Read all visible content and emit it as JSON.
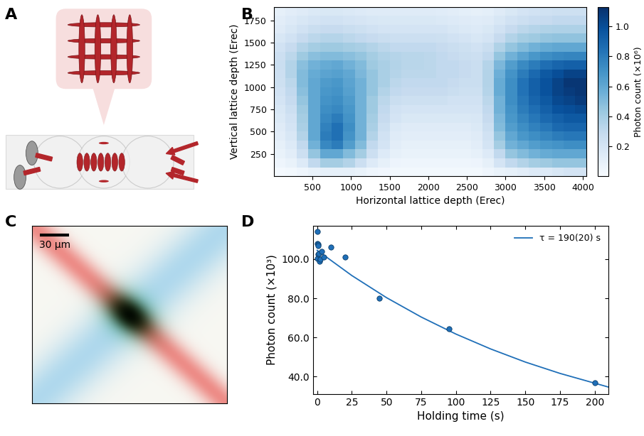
{
  "panel_labels": [
    "A",
    "B",
    "C",
    "D"
  ],
  "image": {
    "scale_bar": "30 µm"
  },
  "chart_data": [
    {
      "type": "heatmap",
      "x_label": "Horizontal lattice depth (Erec)",
      "y_label": "Vertical lattice depth (Erec)",
      "xlim": [
        0,
        4050
      ],
      "ylim": [
        0,
        1900
      ],
      "xticks": [
        500,
        1000,
        1500,
        2000,
        2500,
        3000,
        3500,
        4000
      ],
      "yticks": [
        250,
        500,
        750,
        1000,
        1250,
        1500,
        1750
      ],
      "color": "Blues",
      "colorbar_label": "Photon count (×10⁶)",
      "colorbar_lim": [
        0.0,
        1.13
      ],
      "colorbar_ticks": [
        0.2,
        0.4,
        0.6,
        0.8,
        1.0
      ],
      "x_edges": [
        0,
        150,
        300,
        450,
        600,
        750,
        900,
        1050,
        1200,
        1350,
        1500,
        1650,
        1800,
        1950,
        2100,
        2250,
        2400,
        2550,
        2700,
        2850,
        3000,
        3150,
        3300,
        3450,
        3600,
        3750,
        3900,
        4050
      ],
      "y_edges": [
        0,
        100,
        200,
        300,
        400,
        500,
        600,
        700,
        800,
        900,
        1000,
        1100,
        1200,
        1300,
        1400,
        1500,
        1600,
        1700,
        1800,
        1900
      ],
      "cells": [
        [
          0.02,
          0.03,
          0.05,
          0.08,
          0.1,
          0.1,
          0.1,
          0.08,
          0.05,
          0.04,
          0.03,
          0.03,
          0.03,
          0.03,
          0.03,
          0.03,
          0.03,
          0.03,
          0.05,
          0.08,
          0.1,
          0.12,
          0.15,
          0.15,
          0.18,
          0.2,
          0.2
        ],
        [
          0.05,
          0.08,
          0.15,
          0.3,
          0.4,
          0.4,
          0.35,
          0.25,
          0.15,
          0.1,
          0.06,
          0.05,
          0.05,
          0.05,
          0.05,
          0.05,
          0.05,
          0.06,
          0.1,
          0.2,
          0.3,
          0.35,
          0.4,
          0.42,
          0.45,
          0.45,
          0.45
        ],
        [
          0.08,
          0.12,
          0.25,
          0.45,
          0.6,
          0.6,
          0.5,
          0.4,
          0.25,
          0.15,
          0.1,
          0.08,
          0.08,
          0.08,
          0.08,
          0.08,
          0.08,
          0.1,
          0.15,
          0.3,
          0.45,
          0.5,
          0.55,
          0.58,
          0.6,
          0.6,
          0.6
        ],
        [
          0.1,
          0.15,
          0.3,
          0.55,
          0.75,
          0.8,
          0.65,
          0.5,
          0.3,
          0.2,
          0.12,
          0.1,
          0.1,
          0.1,
          0.1,
          0.1,
          0.1,
          0.12,
          0.2,
          0.4,
          0.55,
          0.6,
          0.65,
          0.68,
          0.7,
          0.72,
          0.72
        ],
        [
          0.12,
          0.18,
          0.35,
          0.6,
          0.8,
          0.85,
          0.7,
          0.55,
          0.35,
          0.22,
          0.14,
          0.12,
          0.12,
          0.12,
          0.12,
          0.12,
          0.12,
          0.14,
          0.22,
          0.45,
          0.6,
          0.68,
          0.72,
          0.76,
          0.8,
          0.82,
          0.82
        ],
        [
          0.14,
          0.2,
          0.38,
          0.6,
          0.78,
          0.85,
          0.72,
          0.55,
          0.38,
          0.25,
          0.16,
          0.14,
          0.14,
          0.14,
          0.14,
          0.14,
          0.14,
          0.16,
          0.25,
          0.5,
          0.65,
          0.72,
          0.78,
          0.82,
          0.88,
          0.9,
          0.9
        ],
        [
          0.16,
          0.22,
          0.4,
          0.6,
          0.75,
          0.8,
          0.7,
          0.55,
          0.4,
          0.28,
          0.2,
          0.17,
          0.17,
          0.17,
          0.17,
          0.17,
          0.17,
          0.18,
          0.28,
          0.52,
          0.68,
          0.76,
          0.82,
          0.88,
          0.92,
          0.95,
          0.95
        ],
        [
          0.18,
          0.25,
          0.42,
          0.6,
          0.72,
          0.75,
          0.68,
          0.55,
          0.42,
          0.3,
          0.22,
          0.2,
          0.2,
          0.2,
          0.2,
          0.2,
          0.2,
          0.2,
          0.3,
          0.55,
          0.7,
          0.8,
          0.86,
          0.92,
          0.98,
          1.0,
          1.02
        ],
        [
          0.2,
          0.28,
          0.45,
          0.6,
          0.7,
          0.72,
          0.66,
          0.55,
          0.42,
          0.32,
          0.26,
          0.24,
          0.24,
          0.24,
          0.24,
          0.22,
          0.22,
          0.22,
          0.32,
          0.55,
          0.72,
          0.82,
          0.9,
          0.95,
          1.02,
          1.05,
          1.08
        ],
        [
          0.22,
          0.3,
          0.48,
          0.6,
          0.68,
          0.7,
          0.64,
          0.55,
          0.45,
          0.35,
          0.3,
          0.28,
          0.28,
          0.28,
          0.28,
          0.26,
          0.24,
          0.24,
          0.34,
          0.58,
          0.72,
          0.84,
          0.92,
          0.98,
          1.05,
          1.08,
          1.1
        ],
        [
          0.24,
          0.32,
          0.5,
          0.6,
          0.66,
          0.68,
          0.62,
          0.55,
          0.45,
          0.38,
          0.32,
          0.3,
          0.3,
          0.3,
          0.3,
          0.28,
          0.26,
          0.26,
          0.35,
          0.58,
          0.72,
          0.84,
          0.92,
          0.98,
          1.05,
          1.1,
          1.1
        ],
        [
          0.25,
          0.35,
          0.5,
          0.58,
          0.62,
          0.64,
          0.6,
          0.52,
          0.45,
          0.38,
          0.34,
          0.32,
          0.32,
          0.32,
          0.3,
          0.3,
          0.28,
          0.26,
          0.35,
          0.56,
          0.7,
          0.8,
          0.88,
          0.95,
          1.0,
          1.05,
          1.05
        ],
        [
          0.26,
          0.35,
          0.48,
          0.55,
          0.58,
          0.6,
          0.55,
          0.5,
          0.42,
          0.38,
          0.35,
          0.33,
          0.33,
          0.32,
          0.3,
          0.3,
          0.28,
          0.26,
          0.34,
          0.52,
          0.65,
          0.74,
          0.8,
          0.86,
          0.9,
          0.92,
          0.92
        ],
        [
          0.25,
          0.32,
          0.42,
          0.48,
          0.5,
          0.5,
          0.48,
          0.45,
          0.4,
          0.36,
          0.34,
          0.33,
          0.33,
          0.32,
          0.3,
          0.28,
          0.26,
          0.25,
          0.3,
          0.45,
          0.55,
          0.62,
          0.68,
          0.72,
          0.75,
          0.76,
          0.76
        ],
        [
          0.22,
          0.28,
          0.35,
          0.4,
          0.42,
          0.42,
          0.4,
          0.38,
          0.35,
          0.32,
          0.3,
          0.3,
          0.3,
          0.3,
          0.28,
          0.26,
          0.24,
          0.22,
          0.26,
          0.36,
          0.45,
          0.5,
          0.55,
          0.58,
          0.6,
          0.6,
          0.6
        ],
        [
          0.18,
          0.22,
          0.28,
          0.32,
          0.34,
          0.34,
          0.32,
          0.3,
          0.28,
          0.26,
          0.25,
          0.25,
          0.25,
          0.25,
          0.24,
          0.22,
          0.2,
          0.18,
          0.2,
          0.28,
          0.35,
          0.4,
          0.42,
          0.45,
          0.46,
          0.46,
          0.46
        ],
        [
          0.14,
          0.18,
          0.22,
          0.26,
          0.28,
          0.28,
          0.26,
          0.24,
          0.22,
          0.2,
          0.2,
          0.2,
          0.2,
          0.2,
          0.2,
          0.18,
          0.16,
          0.15,
          0.17,
          0.22,
          0.28,
          0.32,
          0.34,
          0.36,
          0.37,
          0.37,
          0.37
        ],
        [
          0.12,
          0.15,
          0.18,
          0.2,
          0.22,
          0.22,
          0.2,
          0.19,
          0.18,
          0.17,
          0.17,
          0.17,
          0.17,
          0.17,
          0.16,
          0.15,
          0.14,
          0.13,
          0.14,
          0.18,
          0.22,
          0.25,
          0.27,
          0.28,
          0.3,
          0.3,
          0.3
        ],
        [
          0.1,
          0.12,
          0.14,
          0.16,
          0.17,
          0.17,
          0.16,
          0.15,
          0.14,
          0.14,
          0.14,
          0.14,
          0.14,
          0.14,
          0.13,
          0.12,
          0.11,
          0.1,
          0.11,
          0.14,
          0.17,
          0.2,
          0.22,
          0.23,
          0.24,
          0.24,
          0.24
        ]
      ]
    },
    {
      "type": "scatter",
      "x_label": "Holding time (s)",
      "y_label": "Photon count (×10³)",
      "xlim": [
        -3,
        210
      ],
      "ylim": [
        31,
        117
      ],
      "xticks": [
        0,
        25,
        50,
        75,
        100,
        125,
        150,
        175,
        200
      ],
      "yticks": [
        {
          "value": 40,
          "label": "40.0"
        },
        {
          "value": 60,
          "label": "60.0"
        },
        {
          "value": 80,
          "label": "80.0"
        },
        {
          "value": 100,
          "label": "100.0"
        }
      ],
      "legend": "upper right",
      "series": [
        {
          "type": "scatter",
          "marker": "o",
          "color": "#1f6fb8",
          "x": [
            0,
            0.2,
            0.3,
            0.5,
            0.6,
            0.8,
            1,
            1.5,
            2,
            3,
            5,
            10,
            20,
            45,
            95,
            200
          ],
          "values": [
            100.5,
            114,
            108,
            107.5,
            102.5,
            107,
            103,
            99,
            100,
            104,
            101,
            106,
            101,
            80,
            64.5,
            37
          ]
        },
        {
          "name": "τ = 190(20) s",
          "type": "line",
          "line_style": "solid",
          "color": "#1f6fb8",
          "x": [
            0,
            25,
            50,
            75,
            100,
            125,
            150,
            175,
            210
          ],
          "values": [
            104.5,
            91.6,
            80.3,
            70.4,
            61.7,
            54.1,
            47.4,
            41.6,
            34.6
          ]
        }
      ]
    }
  ]
}
